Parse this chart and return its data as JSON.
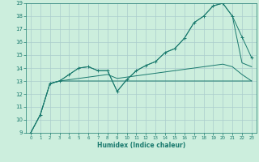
{
  "title": "",
  "xlabel": "Humidex (Indice chaleur)",
  "background_color": "#cceedd",
  "grid_color": "#aacccc",
  "line_color": "#1a7a6e",
  "xlim": [
    -0.5,
    23.5
  ],
  "ylim": [
    9,
    19
  ],
  "x_ticks": [
    0,
    1,
    2,
    3,
    4,
    5,
    6,
    7,
    8,
    9,
    10,
    11,
    12,
    13,
    14,
    15,
    16,
    17,
    18,
    19,
    20,
    21,
    22,
    23
  ],
  "y_ticks": [
    9,
    10,
    11,
    12,
    13,
    14,
    15,
    16,
    17,
    18,
    19
  ],
  "series1_x": [
    0,
    1,
    2,
    3,
    4,
    5,
    6,
    7,
    8,
    9,
    10,
    11,
    12,
    13,
    14,
    15,
    16,
    17,
    18,
    19,
    20,
    21,
    22,
    23
  ],
  "series1_y": [
    9.0,
    10.4,
    12.8,
    13.0,
    13.5,
    14.0,
    14.1,
    13.8,
    13.8,
    12.2,
    13.1,
    13.8,
    14.2,
    14.5,
    15.2,
    15.5,
    16.3,
    17.5,
    18.0,
    18.8,
    19.0,
    18.0,
    16.4,
    14.8
  ],
  "series2_x": [
    0,
    1,
    2,
    3,
    4,
    5,
    6,
    7,
    8,
    9,
    10,
    11,
    12,
    13,
    14,
    15,
    16,
    17,
    18,
    19,
    20,
    21,
    22,
    23
  ],
  "series2_y": [
    9.0,
    10.4,
    12.8,
    13.0,
    13.0,
    13.0,
    13.0,
    13.0,
    13.0,
    13.0,
    13.0,
    13.0,
    13.0,
    13.0,
    13.0,
    13.0,
    13.0,
    13.0,
    13.0,
    13.0,
    13.0,
    13.0,
    13.0,
    13.0
  ],
  "series3_x": [
    0,
    1,
    2,
    3,
    4,
    5,
    6,
    7,
    8,
    9,
    10,
    11,
    12,
    13,
    14,
    15,
    16,
    17,
    18,
    19,
    20,
    21,
    22,
    23
  ],
  "series3_y": [
    9.0,
    10.4,
    12.8,
    13.0,
    13.1,
    13.2,
    13.3,
    13.4,
    13.5,
    13.2,
    13.3,
    13.4,
    13.5,
    13.6,
    13.7,
    13.8,
    13.9,
    14.0,
    14.1,
    14.2,
    14.3,
    14.1,
    13.5,
    13.0
  ],
  "series4_x": [
    2,
    3,
    4,
    5,
    6,
    7,
    8,
    9,
    10,
    11,
    12,
    13,
    14,
    15,
    16,
    17,
    18,
    19,
    20,
    21,
    22,
    23
  ],
  "series4_y": [
    12.8,
    13.0,
    13.5,
    14.0,
    14.1,
    13.8,
    13.8,
    12.2,
    13.1,
    13.8,
    14.2,
    14.5,
    15.2,
    15.5,
    16.3,
    17.5,
    18.0,
    18.8,
    19.0,
    18.0,
    14.4,
    14.1
  ]
}
